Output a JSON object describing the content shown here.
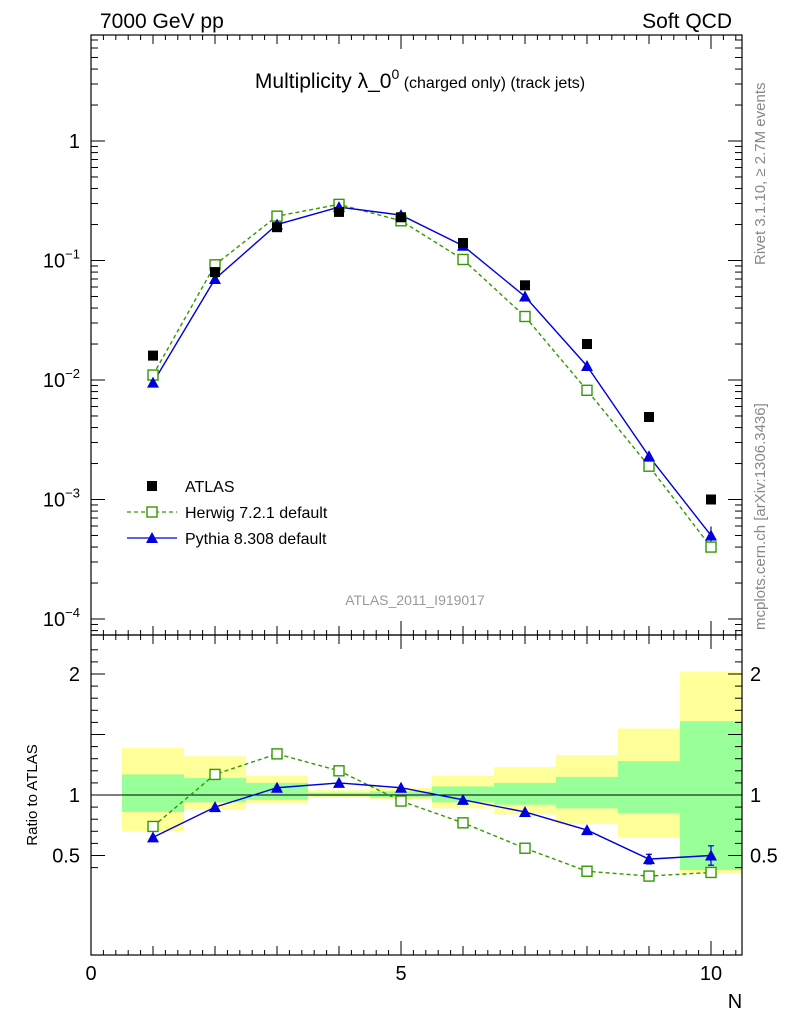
{
  "header": {
    "left": "7000 GeV pp",
    "right": "Soft QCD"
  },
  "title": {
    "main": "Multiplicity λ_0",
    "sup": "0",
    "suffix": " (charged only) (track jets)"
  },
  "side_labels": {
    "rivet": "Rivet 3.1.10, ≥ 2.7M events",
    "mcplots": "mcplots.cern.ch [arXiv:1306.3436]"
  },
  "analysis_id": "ATLAS_2011_I919017",
  "legend": [
    {
      "label": "ATLAS",
      "marker": "filled-square",
      "color": "#000000"
    },
    {
      "label": "Herwig 7.2.1 default",
      "marker": "open-square",
      "color": "#339900"
    },
    {
      "label": "Pythia 8.308 default",
      "marker": "filled-triangle",
      "color": "#0000dd"
    }
  ],
  "chart_data": [
    {
      "type": "scatter",
      "panel": "main",
      "yscale": "log",
      "xlim": [
        0,
        10.5
      ],
      "ylim": [
        0.0001,
        5
      ],
      "ytick_labels": [
        {
          "value": 1,
          "base": "1",
          "exp": ""
        },
        {
          "value": 0.1,
          "base": "10",
          "exp": "−1"
        },
        {
          "value": 0.01,
          "base": "10",
          "exp": "−2"
        },
        {
          "value": 0.001,
          "base": "10",
          "exp": "−3"
        },
        {
          "value": 0.0001,
          "base": "10",
          "exp": "−4"
        }
      ],
      "series": [
        {
          "name": "ATLAS",
          "x": [
            1,
            2,
            3,
            4,
            5,
            6,
            7,
            8,
            9,
            10
          ],
          "y": [
            0.016,
            0.08,
            0.19,
            0.255,
            0.23,
            0.14,
            0.062,
            0.02,
            0.0049,
            0.001
          ]
        },
        {
          "name": "Herwig 7.2.1 default",
          "x": [
            1,
            2,
            3,
            4,
            5,
            6,
            7,
            8,
            9,
            10
          ],
          "y": [
            0.011,
            0.092,
            0.235,
            0.295,
            0.215,
            0.102,
            0.034,
            0.0082,
            0.0019,
            0.0004
          ]
        },
        {
          "name": "Pythia 8.308 default",
          "x": [
            1,
            2,
            3,
            4,
            5,
            6,
            7,
            8,
            9,
            10
          ],
          "y": [
            0.0095,
            0.07,
            0.2,
            0.28,
            0.24,
            0.133,
            0.05,
            0.0131,
            0.0023,
            0.0005
          ]
        }
      ]
    },
    {
      "type": "line",
      "panel": "ratio",
      "ylabel": "Ratio to ATLAS",
      "xlabel": "N",
      "xlim": [
        0,
        10.5
      ],
      "ylim": [
        0.35,
        2.25
      ],
      "xticks": [
        0,
        5,
        10
      ],
      "yticks": [
        0.5,
        1,
        2
      ],
      "bands": {
        "x_low": [
          0.5,
          1.5,
          2.5,
          3.5,
          4.5,
          5.5,
          6.5,
          7.5,
          8.5,
          9.5
        ],
        "x_high": [
          1.5,
          2.5,
          3.5,
          4.5,
          5.5,
          6.5,
          7.5,
          8.5,
          9.5,
          10.5
        ],
        "stat_low": [
          0.86,
          0.94,
          0.96,
          0.99,
          0.98,
          0.94,
          0.92,
          0.89,
          0.85,
          0.38
        ],
        "stat_high": [
          1.17,
          1.14,
          1.1,
          1.02,
          1.03,
          1.07,
          1.1,
          1.15,
          1.28,
          1.61
        ],
        "total_low": [
          0.7,
          0.88,
          0.93,
          0.98,
          0.96,
          0.89,
          0.84,
          0.76,
          0.65,
          0.35
        ],
        "total_high": [
          1.39,
          1.32,
          1.16,
          1.04,
          1.06,
          1.16,
          1.23,
          1.33,
          1.55,
          2.02
        ]
      },
      "series": [
        {
          "name": "Herwig 7.2.1 default",
          "x": [
            1,
            2,
            3,
            4,
            5,
            6,
            7,
            8,
            9,
            10
          ],
          "y": [
            0.74,
            1.17,
            1.34,
            1.2,
            0.95,
            0.77,
            0.56,
            0.37,
            0.33,
            0.36
          ]
        },
        {
          "name": "Pythia 8.308 default",
          "x": [
            1,
            2,
            3,
            4,
            5,
            6,
            7,
            8,
            9,
            10
          ],
          "y": [
            0.65,
            0.9,
            1.06,
            1.1,
            1.06,
            0.96,
            0.86,
            0.71,
            0.47,
            0.5
          ],
          "err": [
            0.01,
            0.01,
            0.01,
            0.01,
            0.01,
            0.01,
            0.01,
            0.01,
            0.04,
            0.08
          ]
        }
      ]
    }
  ],
  "colors": {
    "band_stat": "#99ff99",
    "band_total": "#ffff99",
    "herwig": "#339900",
    "pythia": "#0000dd",
    "data": "#000000"
  }
}
